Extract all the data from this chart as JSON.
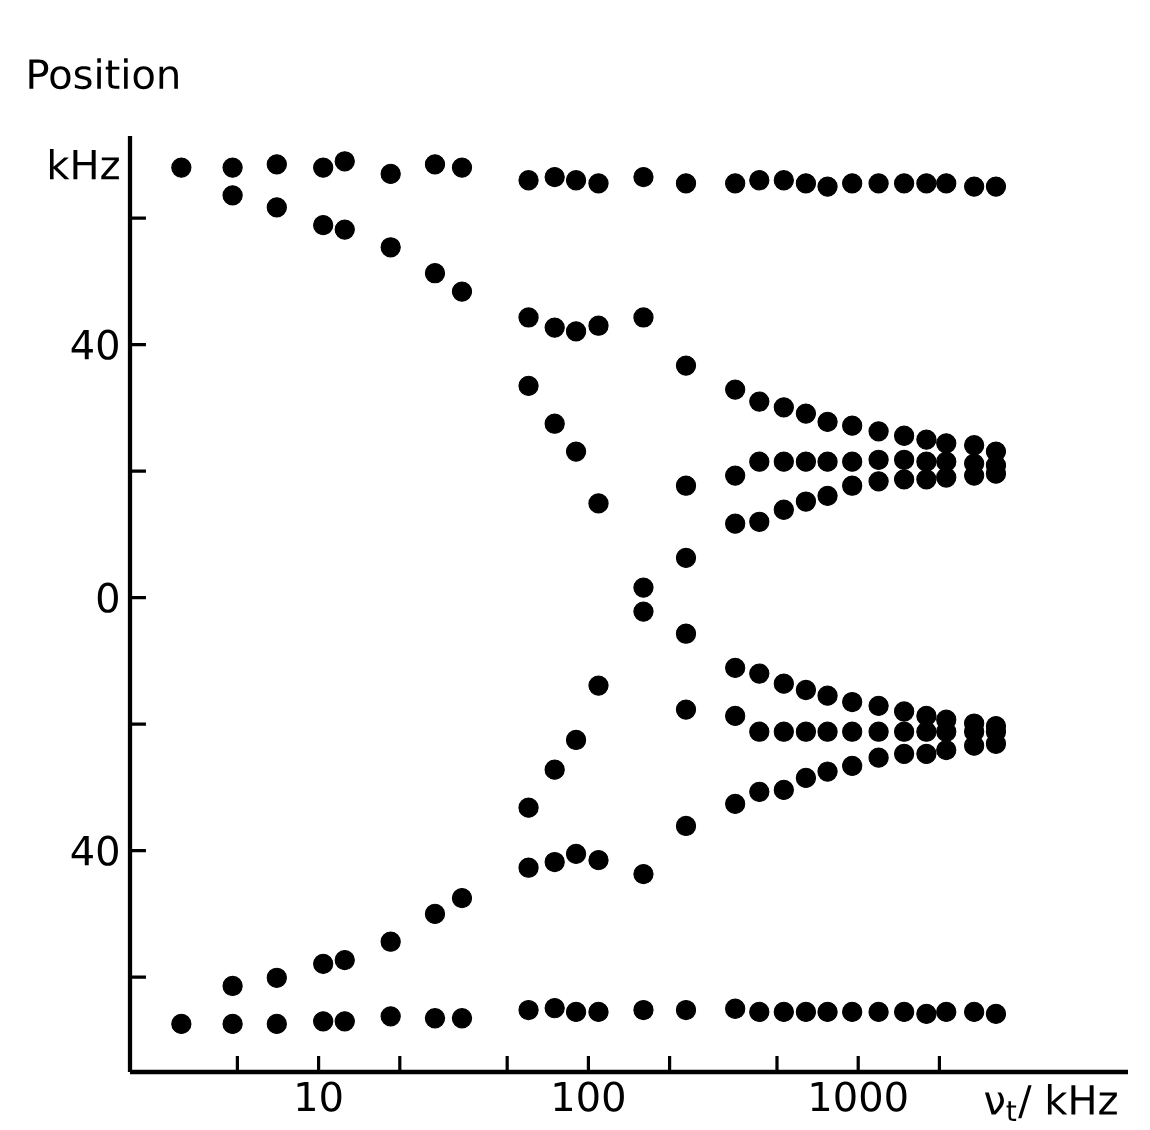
{
  "chart_data": {
    "type": "scatter",
    "xlabel": "ν$_{t}$/ kHz",
    "ylabel": "Position",
    "annotations": [
      "kHz"
    ],
    "log": "x",
    "color": "#000000",
    "xlim": [
      2,
      10000
    ],
    "ylim": [
      -75,
      73
    ],
    "xticks": [
      {
        "value": 5,
        "label": null
      },
      10,
      {
        "value": 20,
        "label": null
      },
      {
        "value": 50,
        "label": null
      },
      100,
      {
        "value": 200,
        "label": null
      },
      {
        "value": 500,
        "label": null
      },
      1000,
      {
        "value": 2000,
        "label": null
      }
    ],
    "yticks": [
      {
        "value": -60,
        "label": null
      },
      {
        "value": -40,
        "label": "40"
      },
      {
        "value": -20,
        "label": null
      },
      0,
      {
        "value": 20,
        "label": null
      },
      40,
      {
        "value": 60,
        "label": null
      }
    ],
    "x": [
      3.1,
      4.8,
      7,
      10.4,
      12.5,
      18.5,
      27,
      34,
      60,
      75,
      90,
      109,
      160,
      230,
      350,
      430,
      530,
      640,
      770,
      950,
      1190,
      1480,
      1790,
      2120,
      2690,
      3240,
      4.8,
      7,
      10.4,
      12.5,
      18.5,
      27,
      34,
      60,
      75,
      90,
      109,
      160,
      230,
      60,
      75,
      90,
      109,
      160,
      160,
      230,
      230,
      230,
      230,
      109,
      90,
      75,
      60,
      60,
      75,
      90,
      109,
      160,
      230,
      4.8,
      7,
      10.4,
      12.5,
      18.5,
      27,
      34,
      3.1,
      4.8,
      7,
      10.4,
      12.5,
      18.5,
      27,
      34,
      60,
      75,
      90,
      109,
      160,
      230,
      350,
      430,
      530,
      640,
      770,
      950,
      1190,
      1480,
      1790,
      2120,
      2690,
      3240,
      350,
      430,
      530,
      640,
      770,
      950,
      1190,
      1480,
      1790,
      2120,
      2690,
      3240,
      350,
      430,
      530,
      640,
      770,
      950,
      1190,
      1480,
      1790,
      2120,
      2690,
      3240,
      350,
      430,
      530,
      640,
      770,
      950,
      1190,
      1480,
      1790,
      2120,
      2690,
      3240,
      350,
      430,
      530,
      640,
      770,
      950,
      1190,
      1480,
      1790,
      2120,
      2690,
      3240,
      350,
      430,
      530,
      640,
      770,
      950,
      1190,
      1480,
      1790,
      2120,
      2690,
      3240,
      350,
      430,
      530,
      640,
      770,
      950,
      1190,
      1480,
      1790,
      2120,
      2690,
      3240
    ],
    "values": [
      68,
      68,
      68.5,
      68,
      69,
      67,
      68.5,
      68,
      66,
      66.5,
      66,
      65.5,
      66.5,
      65.5,
      65.5,
      66,
      66,
      65.5,
      65,
      65.5,
      65.5,
      65.5,
      65.5,
      65.5,
      65,
      65,
      63.6,
      61.7,
      58.9,
      58.2,
      55.4,
      51.3,
      48.4,
      44.3,
      42.7,
      42.1,
      43,
      44.3,
      36.7,
      33.5,
      27.5,
      23.1,
      14.9,
      1.6,
      -2.2,
      17.7,
      6.3,
      -5.7,
      -17.7,
      -13.9,
      -22.5,
      -27.2,
      -33.2,
      -42.7,
      -41.8,
      -40.5,
      -41.5,
      -43.7,
      -36.1,
      -61.4,
      -60.1,
      -57.9,
      -57.3,
      -54.4,
      -50,
      -47.5,
      -67.4,
      -67.4,
      -67.4,
      -67,
      -67,
      -66.2,
      -66.5,
      -66.5,
      -65.2,
      -64.9,
      -65.5,
      -65.5,
      -65.2,
      -65.2,
      -65,
      -65.5,
      -65.5,
      -65.5,
      -65.5,
      -65.5,
      -65.5,
      -65.5,
      -65.8,
      -65.5,
      -65.5,
      -65.8,
      32.9,
      31,
      30.1,
      29.1,
      27.8,
      27.2,
      26.3,
      25.6,
      25,
      24.4,
      24.1,
      23.1,
      19.3,
      21.5,
      21.5,
      21.5,
      21.5,
      21.5,
      21.8,
      21.8,
      21.5,
      21.5,
      21.2,
      20.9,
      11.7,
      12,
      13.9,
      15.2,
      16.1,
      17.7,
      18.4,
      18.7,
      18.7,
      19,
      19.3,
      19.6,
      -11.1,
      -12,
      -13.6,
      -14.6,
      -15.5,
      -16.5,
      -17.1,
      -18,
      -18.7,
      -19.3,
      -19.9,
      -20.3,
      -18.7,
      -21.2,
      -21.2,
      -21.2,
      -21.2,
      -21.2,
      -21.2,
      -21.2,
      -21.2,
      -21.2,
      -21.2,
      -21.2,
      -32.6,
      -30.7,
      -30.4,
      -28.5,
      -27.5,
      -26.6,
      -25.3,
      -24.7,
      -24.7,
      -24.1,
      -23.4,
      -23.1
    ]
  }
}
